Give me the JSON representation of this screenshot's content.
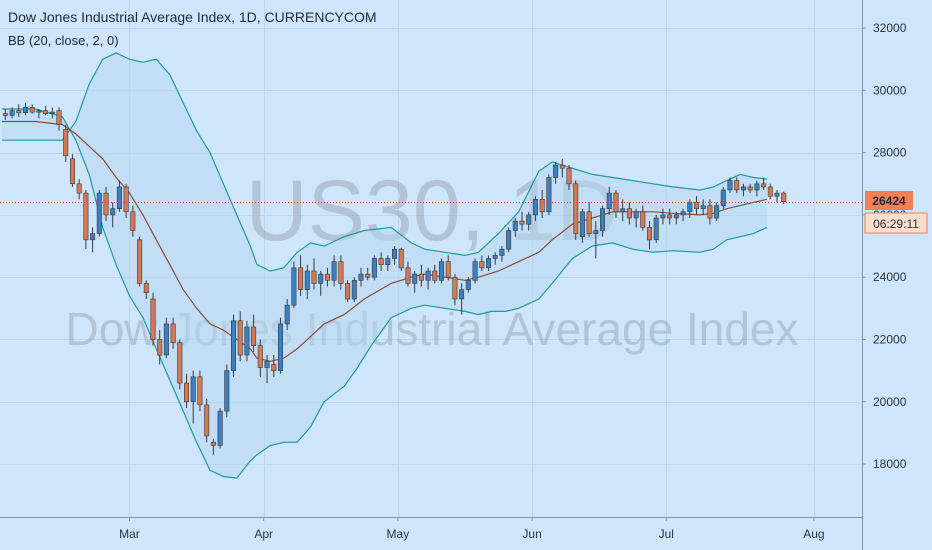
{
  "chart_data": {
    "type": "candlestick",
    "title": "Dow Jones Industrial Average Index, 1D, CURRENCYCOM",
    "indicator_label": "BB (20, close, 2, 0)",
    "watermark_symbol": "US30, 1D",
    "watermark_name": "Dow Jones Industrial Average Index",
    "y_ticks": [
      18000,
      20000,
      22000,
      24000,
      26000,
      28000,
      30000,
      32000
    ],
    "ylim": [
      16300,
      32900
    ],
    "x_ticks": [
      {
        "label": "Mar",
        "index": 19
      },
      {
        "label": "Apr",
        "index": 39
      },
      {
        "label": "May",
        "index": 59
      },
      {
        "label": "Jun",
        "index": 79
      },
      {
        "label": "Jul",
        "index": 99
      },
      {
        "label": "Aug",
        "index": 121
      }
    ],
    "x_range": [
      0,
      127
    ],
    "last_price": "26424",
    "last_price_value": 26424,
    "countdown": "06:29:11",
    "colors": {
      "background": "#cfe5fb",
      "up": "#3d7fc0",
      "down": "#d37a55",
      "wick": "#3a3a3a",
      "band": "#1e9a9a",
      "band_fill": "#b7d9f2",
      "basis": "#8b4b3c",
      "price_line": "#d2542e",
      "price_tag": "#f27f55"
    },
    "candles": [
      [
        29250,
        29400,
        29050,
        29200
      ],
      [
        29200,
        29450,
        29100,
        29350
      ],
      [
        29350,
        29550,
        29150,
        29280
      ],
      [
        29280,
        29600,
        29200,
        29450
      ],
      [
        29450,
        29550,
        29250,
        29300
      ],
      [
        29300,
        29400,
        29100,
        29350
      ],
      [
        29350,
        29500,
        29200,
        29250
      ],
      [
        29250,
        29450,
        29100,
        29300
      ],
      [
        29350,
        29450,
        28700,
        28900
      ],
      [
        28750,
        28900,
        27700,
        27900
      ],
      [
        27800,
        27950,
        26900,
        27000
      ],
      [
        27000,
        27150,
        26500,
        26700
      ],
      [
        26700,
        26800,
        24900,
        25200
      ],
      [
        25200,
        25600,
        24800,
        25400
      ],
      [
        25400,
        26800,
        25300,
        26700
      ],
      [
        26700,
        26900,
        25800,
        26000
      ],
      [
        26000,
        26400,
        25600,
        26200
      ],
      [
        26200,
        27100,
        26100,
        26900
      ],
      [
        26900,
        27000,
        25900,
        26100
      ],
      [
        26100,
        26300,
        25300,
        25500
      ],
      [
        25200,
        25300,
        23700,
        23800
      ],
      [
        23800,
        23900,
        23300,
        23500
      ],
      [
        23300,
        23500,
        21800,
        22000
      ],
      [
        22000,
        22300,
        21200,
        21500
      ],
      [
        21500,
        22700,
        21400,
        22500
      ],
      [
        22500,
        22700,
        21700,
        21900
      ],
      [
        21900,
        22000,
        20400,
        20600
      ],
      [
        20600,
        20900,
        19800,
        20000
      ],
      [
        20000,
        21000,
        19300,
        20800
      ],
      [
        20800,
        21000,
        19700,
        19900
      ],
      [
        19900,
        20100,
        18700,
        18900
      ],
      [
        18700,
        18800,
        18300,
        18600
      ],
      [
        18600,
        19800,
        18500,
        19700
      ],
      [
        19700,
        21200,
        19500,
        21000
      ],
      [
        21000,
        22800,
        20800,
        22600
      ],
      [
        22600,
        22900,
        21300,
        21500
      ],
      [
        21500,
        22600,
        21300,
        22400
      ],
      [
        22400,
        22800,
        21600,
        21800
      ],
      [
        21800,
        22000,
        20800,
        21100
      ],
      [
        21100,
        21500,
        20600,
        21300
      ],
      [
        21200,
        21500,
        20800,
        21000
      ],
      [
        21000,
        22700,
        20900,
        22500
      ],
      [
        22500,
        23300,
        22300,
        23100
      ],
      [
        23100,
        24500,
        23000,
        24300
      ],
      [
        24300,
        24700,
        23400,
        23600
      ],
      [
        23600,
        24400,
        23300,
        24200
      ],
      [
        24200,
        24600,
        23600,
        23800
      ],
      [
        23800,
        24200,
        23400,
        24100
      ],
      [
        24100,
        24300,
        23700,
        23900
      ],
      [
        23900,
        24700,
        23700,
        24500
      ],
      [
        24500,
        24700,
        23600,
        23800
      ],
      [
        23800,
        23900,
        23200,
        23300
      ],
      [
        23300,
        24000,
        23200,
        23900
      ],
      [
        23900,
        24300,
        23700,
        24100
      ],
      [
        24100,
        24300,
        23900,
        24000
      ],
      [
        24000,
        24700,
        23900,
        24600
      ],
      [
        24600,
        24800,
        24200,
        24400
      ],
      [
        24400,
        24700,
        24200,
        24600
      ],
      [
        24600,
        25000,
        24400,
        24900
      ],
      [
        24900,
        24950,
        24200,
        24300
      ],
      [
        24300,
        24500,
        23700,
        23800
      ],
      [
        23800,
        24200,
        23500,
        24100
      ],
      [
        24100,
        24400,
        23700,
        23900
      ],
      [
        23900,
        24300,
        23600,
        24200
      ],
      [
        24200,
        24400,
        23800,
        23900
      ],
      [
        23900,
        24600,
        23800,
        24500
      ],
      [
        24500,
        24700,
        23900,
        24000
      ],
      [
        24000,
        24100,
        23100,
        23300
      ],
      [
        23300,
        23800,
        22800,
        23600
      ],
      [
        23600,
        24000,
        23500,
        23900
      ],
      [
        23900,
        24600,
        23800,
        24500
      ],
      [
        24500,
        24700,
        24200,
        24300
      ],
      [
        24300,
        24700,
        24200,
        24600
      ],
      [
        24600,
        24800,
        24400,
        24700
      ],
      [
        24700,
        25000,
        24500,
        24900
      ],
      [
        24900,
        25600,
        24800,
        25500
      ],
      [
        25500,
        25900,
        25300,
        25800
      ],
      [
        25800,
        26100,
        25500,
        25700
      ],
      [
        25700,
        26100,
        25500,
        26000
      ],
      [
        26000,
        26600,
        25800,
        26500
      ],
      [
        26500,
        26800,
        25900,
        26100
      ],
      [
        26100,
        27300,
        26000,
        27200
      ],
      [
        27200,
        27700,
        27000,
        27600
      ],
      [
        27600,
        27800,
        27200,
        27500
      ],
      [
        27500,
        27600,
        26800,
        27000
      ],
      [
        27000,
        27100,
        25200,
        25400
      ],
      [
        25300,
        26200,
        25100,
        26100
      ],
      [
        26100,
        26400,
        25300,
        25400
      ],
      [
        25400,
        25800,
        24600,
        25500
      ],
      [
        25500,
        26300,
        25300,
        26200
      ],
      [
        26200,
        26900,
        26000,
        26700
      ],
      [
        26700,
        26800,
        25900,
        26100
      ],
      [
        26100,
        26500,
        25800,
        26200
      ],
      [
        26200,
        26400,
        25700,
        25900
      ],
      [
        25900,
        26200,
        25600,
        26100
      ],
      [
        26100,
        26300,
        25500,
        25600
      ],
      [
        25600,
        25800,
        24900,
        25200
      ],
      [
        25200,
        26000,
        25100,
        25900
      ],
      [
        25900,
        26200,
        25700,
        26000
      ],
      [
        26000,
        26200,
        25700,
        25900
      ],
      [
        25900,
        26100,
        25700,
        26000
      ],
      [
        26000,
        26200,
        25800,
        26100
      ],
      [
        26100,
        26500,
        25900,
        26400
      ],
      [
        26400,
        26600,
        26000,
        26200
      ],
      [
        26200,
        26500,
        26000,
        26300
      ],
      [
        26300,
        26500,
        25700,
        25900
      ],
      [
        25900,
        26400,
        25800,
        26300
      ],
      [
        26300,
        26900,
        26200,
        26800
      ],
      [
        26800,
        27200,
        26700,
        27100
      ],
      [
        27100,
        27200,
        26700,
        26800
      ],
      [
        26800,
        27000,
        26600,
        26900
      ],
      [
        26900,
        27000,
        26700,
        26800
      ],
      [
        26800,
        27100,
        26600,
        27000
      ],
      [
        27000,
        27200,
        26800,
        26900
      ],
      [
        26900,
        27000,
        26500,
        26600
      ],
      [
        26600,
        26800,
        26400,
        26700
      ],
      [
        26700,
        26750,
        26350,
        26424
      ]
    ],
    "upper_band": [
      [
        0,
        28400
      ],
      [
        5,
        28400
      ],
      [
        9,
        28400
      ],
      [
        11,
        29000
      ],
      [
        13,
        30200
      ],
      [
        15,
        31000
      ],
      [
        17,
        31200
      ],
      [
        19,
        31000
      ],
      [
        21,
        30900
      ],
      [
        23,
        31000
      ],
      [
        25,
        30500
      ],
      [
        27,
        29600
      ],
      [
        29,
        28700
      ],
      [
        31,
        28000
      ],
      [
        33,
        27000
      ],
      [
        35,
        26000
      ],
      [
        37,
        25000
      ],
      [
        38,
        24400
      ],
      [
        40,
        24200
      ],
      [
        42,
        24300
      ],
      [
        44,
        24800
      ],
      [
        46,
        25100
      ],
      [
        48,
        25000
      ],
      [
        51,
        25300
      ],
      [
        54,
        25500
      ],
      [
        58,
        25600
      ],
      [
        61,
        25100
      ],
      [
        63,
        24900
      ],
      [
        66,
        24800
      ],
      [
        69,
        24700
      ],
      [
        71,
        24800
      ],
      [
        74,
        25400
      ],
      [
        77,
        26100
      ],
      [
        80,
        27400
      ],
      [
        82,
        27700
      ],
      [
        85,
        27500
      ],
      [
        88,
        27300
      ],
      [
        91,
        27200
      ],
      [
        94,
        27100
      ],
      [
        97,
        27000
      ],
      [
        100,
        26900
      ],
      [
        104,
        26800
      ],
      [
        106,
        26900
      ],
      [
        108,
        27100
      ],
      [
        110,
        27300
      ],
      [
        112,
        27200
      ],
      [
        114,
        27150
      ]
    ],
    "lower_band": [
      [
        0,
        29400
      ],
      [
        5,
        29400
      ],
      [
        9,
        29150
      ],
      [
        11,
        28400
      ],
      [
        13,
        27300
      ],
      [
        15,
        25600
      ],
      [
        17,
        24400
      ],
      [
        19,
        23400
      ],
      [
        21,
        22700
      ],
      [
        23,
        21700
      ],
      [
        25,
        20700
      ],
      [
        27,
        19700
      ],
      [
        29,
        18700
      ],
      [
        31,
        17800
      ],
      [
        33,
        17600
      ],
      [
        35,
        17550
      ],
      [
        37,
        18100
      ],
      [
        38,
        18300
      ],
      [
        40,
        18600
      ],
      [
        42,
        18700
      ],
      [
        44,
        18700
      ],
      [
        46,
        19200
      ],
      [
        48,
        20000
      ],
      [
        51,
        20500
      ],
      [
        53,
        21100
      ],
      [
        55,
        21800
      ],
      [
        58,
        22700
      ],
      [
        61,
        23000
      ],
      [
        63,
        23100
      ],
      [
        66,
        23000
      ],
      [
        69,
        22900
      ],
      [
        71,
        22800
      ],
      [
        73,
        22900
      ],
      [
        75,
        22900
      ],
      [
        77,
        23000
      ],
      [
        80,
        23300
      ],
      [
        82,
        23800
      ],
      [
        85,
        24600
      ],
      [
        88,
        25000
      ],
      [
        91,
        25100
      ],
      [
        94,
        24900
      ],
      [
        97,
        24800
      ],
      [
        100,
        24850
      ],
      [
        104,
        24800
      ],
      [
        106,
        24900
      ],
      [
        108,
        25200
      ],
      [
        110,
        25300
      ],
      [
        112,
        25400
      ],
      [
        114,
        25600
      ]
    ],
    "basis": [
      [
        0,
        29000
      ],
      [
        5,
        29000
      ],
      [
        9,
        28900
      ],
      [
        11,
        28600
      ],
      [
        13,
        28200
      ],
      [
        15,
        27800
      ],
      [
        17,
        27200
      ],
      [
        19,
        26700
      ],
      [
        21,
        26000
      ],
      [
        23,
        25200
      ],
      [
        25,
        24400
      ],
      [
        27,
        23600
      ],
      [
        29,
        23000
      ],
      [
        31,
        22500
      ],
      [
        33,
        22300
      ],
      [
        35,
        22000
      ],
      [
        37,
        21700
      ],
      [
        38,
        21400
      ],
      [
        40,
        21300
      ],
      [
        42,
        21400
      ],
      [
        44,
        21700
      ],
      [
        46,
        22100
      ],
      [
        48,
        22500
      ],
      [
        51,
        22800
      ],
      [
        54,
        23300
      ],
      [
        58,
        23800
      ],
      [
        61,
        24000
      ],
      [
        63,
        24100
      ],
      [
        66,
        24000
      ],
      [
        69,
        23900
      ],
      [
        71,
        24000
      ],
      [
        74,
        24200
      ],
      [
        77,
        24500
      ],
      [
        80,
        24800
      ],
      [
        82,
        25200
      ],
      [
        85,
        25700
      ],
      [
        88,
        25900
      ],
      [
        91,
        26100
      ],
      [
        94,
        26100
      ],
      [
        97,
        26100
      ],
      [
        100,
        26050
      ],
      [
        104,
        26000
      ],
      [
        106,
        26050
      ],
      [
        108,
        26200
      ],
      [
        110,
        26300
      ],
      [
        112,
        26400
      ],
      [
        114,
        26500
      ]
    ]
  }
}
